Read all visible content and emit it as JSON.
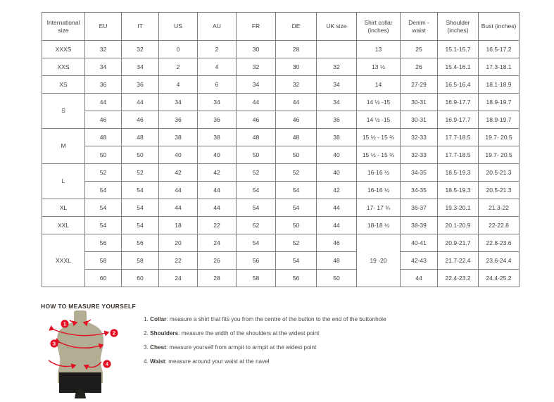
{
  "table": {
    "headers": [
      "International size",
      "EU",
      "IT",
      "US",
      "AU",
      "FR",
      "DE",
      "UK size",
      "Shirt collar (inches)",
      "Denim - waist",
      "Shoulder (inches)",
      "Bust (inches)"
    ],
    "rows": [
      {
        "intl": {
          "v": "XXXS",
          "span": 1
        },
        "cells": [
          "32",
          "32",
          "0",
          "2",
          "30",
          "28",
          ""
        ],
        "collar": {
          "v": "13",
          "span": 1
        },
        "rest": [
          "25",
          "15.1-15.7",
          "16.5-17.2"
        ]
      },
      {
        "intl": {
          "v": "XXS",
          "span": 1
        },
        "cells": [
          "34",
          "34",
          "2",
          "4",
          "32",
          "30",
          "32"
        ],
        "collar": {
          "v": "13 ½",
          "span": 1
        },
        "rest": [
          "26",
          "15.4-16.1",
          "17.3-18.1"
        ]
      },
      {
        "intl": {
          "v": "XS",
          "span": 1
        },
        "cells": [
          "36",
          "36",
          "4",
          "6",
          "34",
          "32",
          "34"
        ],
        "collar": {
          "v": "14",
          "span": 1
        },
        "rest": [
          "27-29",
          "16.5-16.4",
          "18.1-18.9"
        ]
      },
      {
        "intl": {
          "v": "S",
          "span": 2
        },
        "cells": [
          "44",
          "44",
          "34",
          "34",
          "44",
          "44",
          "34"
        ],
        "collar": {
          "v": "14 ½ -15",
          "span": 1
        },
        "rest": [
          "30-31",
          "16.9-17.7",
          "18.9-19.7"
        ]
      },
      {
        "intl": null,
        "cells": [
          "46",
          "46",
          "36",
          "36",
          "46",
          "46",
          "36"
        ],
        "collar": {
          "v": "14 ½ -15",
          "span": 1
        },
        "rest": [
          "30-31",
          "16.9-17.7",
          "18.9-19.7"
        ]
      },
      {
        "intl": {
          "v": "M",
          "span": 2
        },
        "cells": [
          "48",
          "48",
          "38",
          "38",
          "48",
          "48",
          "38"
        ],
        "collar": {
          "v": "15 ½ - 15 ¾",
          "span": 1
        },
        "rest": [
          "32-33",
          "17.7-18.5",
          "19.7- 20.5"
        ]
      },
      {
        "intl": null,
        "cells": [
          "50",
          "50",
          "40",
          "40",
          "50",
          "50",
          "40"
        ],
        "collar": {
          "v": "15 ½ - 15 ¾",
          "span": 1
        },
        "rest": [
          "32-33",
          "17.7-18.5",
          "19.7- 20.5"
        ]
      },
      {
        "intl": {
          "v": "L",
          "span": 2
        },
        "cells": [
          "52",
          "52",
          "42",
          "42",
          "52",
          "52",
          "40"
        ],
        "collar": {
          "v": "16-16 ½",
          "span": 1
        },
        "rest": [
          "34-35",
          "18.5-19.3",
          "20.5-21.3"
        ]
      },
      {
        "intl": null,
        "cells": [
          "54",
          "54",
          "44",
          "44",
          "54",
          "54",
          "42"
        ],
        "collar": {
          "v": "16-16 ½",
          "span": 1
        },
        "rest": [
          "34-35",
          "18.5-19.3",
          "20.5-21.3"
        ]
      },
      {
        "intl": {
          "v": "XL",
          "span": 1
        },
        "cells": [
          "54",
          "54",
          "44",
          "44",
          "54",
          "54",
          "44"
        ],
        "collar": {
          "v": "17- 17 ¾",
          "span": 1
        },
        "rest": [
          "36-37",
          "19.3-20.1",
          "21.3-22"
        ]
      },
      {
        "intl": {
          "v": "XXL",
          "span": 1
        },
        "cells": [
          "54",
          "54",
          "18",
          "22",
          "52",
          "50",
          "44"
        ],
        "collar": {
          "v": "18-18 ½",
          "span": 1
        },
        "rest": [
          "38-39",
          "20.1-20.9",
          "22-22.8"
        ]
      },
      {
        "intl": {
          "v": "XXXL",
          "span": 3
        },
        "cells": [
          "56",
          "56",
          "20",
          "24",
          "54",
          "52",
          "46"
        ],
        "collar": {
          "v": "19 -20",
          "span": 3
        },
        "rest": [
          "40-41",
          "20.9-21.7",
          "22.8-23.6"
        ]
      },
      {
        "intl": null,
        "cells": [
          "58",
          "58",
          "22",
          "26",
          "56",
          "54",
          "48"
        ],
        "collar": null,
        "rest": [
          "42-43",
          "21.7-22.4",
          "23.6-24.4"
        ]
      },
      {
        "intl": null,
        "cells": [
          "60",
          "60",
          "24",
          "28",
          "58",
          "56",
          "50"
        ],
        "collar": null,
        "rest": [
          "44",
          "22.4-23.2",
          "24.4-25.2"
        ]
      }
    ]
  },
  "measure": {
    "title": "HOW TO MEASURE YOURSELF",
    "markers": [
      "1",
      "2",
      "3",
      "4"
    ],
    "steps": [
      {
        "num": "1.",
        "label": "Collar",
        "text": ": measure a shirt that fits you from the centre of the button to the end of the buttonhole"
      },
      {
        "num": "2.",
        "label": "Shoulders",
        "text": ": measure the width of the shoulders at the widest point"
      },
      {
        "num": "3.",
        "label": "Chest",
        "text": ": measure yourself from armpit to armpit at the widest point"
      },
      {
        "num": "4.",
        "label": "Waist",
        "text": ": measure around your waist at the navel"
      }
    ]
  },
  "colors": {
    "accent_red": "#e30f22",
    "mannequin": "#b2ae93",
    "table_border": "#7d7d7d"
  }
}
